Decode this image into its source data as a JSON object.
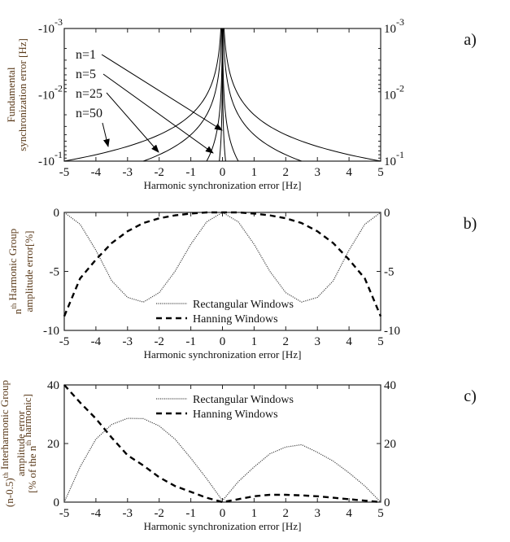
{
  "chart_data": [
    {
      "id": "a",
      "type": "line",
      "panel_label": "a)",
      "xlabel": "Harmonic synchronization  error [Hz]",
      "ylabel_lines": [
        [
          {
            "t": "Fundamental"
          }
        ],
        [
          {
            "t": "synchronization error [Hz]"
          }
        ]
      ],
      "xlim": [
        -5,
        5
      ],
      "xticks": [
        "-5",
        "-4",
        "-3",
        "-2",
        "-1",
        "0",
        "1",
        "2",
        "3",
        "4",
        "5"
      ],
      "yscale": "log",
      "ylim": [
        0.001,
        0.1
      ],
      "yticks_left": [
        {
          "v": 0.001,
          "base": "-10",
          "exp": "-3"
        },
        {
          "v": 0.01,
          "base": "-10",
          "exp": "-2"
        },
        {
          "v": 0.1,
          "base": "-10",
          "exp": "-1"
        }
      ],
      "yticks_right": [
        {
          "v": 0.001,
          "base": "10",
          "exp": "-3"
        },
        {
          "v": 0.01,
          "base": "10",
          "exp": "-2"
        },
        {
          "v": 0.1,
          "base": "10",
          "exp": "-1"
        }
      ],
      "series": [
        {
          "name": "n=1",
          "n": 1
        },
        {
          "name": "n=5",
          "n": 5
        },
        {
          "name": "n=25",
          "n": 25
        },
        {
          "name": "n=50",
          "n": 50
        }
      ],
      "relation": "fundamental error = |harmonic error| / n",
      "color": "#000000"
    },
    {
      "id": "b",
      "type": "line",
      "panel_label": "b)",
      "xlabel": "Harmonic synchronization  error [Hz]",
      "ylabel_lines": [
        [
          {
            "t": "n"
          },
          {
            "t": "th",
            "sup": true
          },
          {
            "t": " Harmonic Group"
          }
        ],
        [
          {
            "t": "amplitude error[%]"
          }
        ]
      ],
      "xlim": [
        -5,
        5
      ],
      "xticks": [
        "-5",
        "-4",
        "-3",
        "-2",
        "-1",
        "0",
        "1",
        "2",
        "3",
        "4",
        "5"
      ],
      "ylim": [
        -10,
        0
      ],
      "yticks": [
        "0",
        "-5",
        "-10"
      ],
      "ytick_values": [
        0,
        -5,
        -10
      ],
      "legend": "center-bottom",
      "x": [
        -5,
        -4.5,
        -4,
        -3.5,
        -3,
        -2.5,
        -2,
        -1.5,
        -1,
        -0.5,
        0,
        0.5,
        1,
        1.5,
        2,
        2.5,
        3,
        3.5,
        4,
        4.5,
        5
      ],
      "series": [
        {
          "name": "Rectangular Windows",
          "style": "dotted",
          "values": [
            0,
            -1.0,
            -3.2,
            -5.8,
            -7.2,
            -7.6,
            -6.8,
            -5.0,
            -2.7,
            -0.8,
            0,
            -0.8,
            -2.7,
            -5.0,
            -6.8,
            -7.6,
            -7.2,
            -5.8,
            -3.2,
            -1.0,
            0
          ]
        },
        {
          "name": "Hanning Windows",
          "style": "dashed",
          "values": [
            -8.8,
            -5.6,
            -4.0,
            -2.6,
            -1.6,
            -0.9,
            -0.5,
            -0.25,
            -0.1,
            0,
            0,
            0,
            -0.1,
            -0.25,
            -0.5,
            -0.9,
            -1.6,
            -2.6,
            -4.0,
            -5.6,
            -8.8
          ]
        }
      ]
    },
    {
      "id": "c",
      "type": "line",
      "panel_label": "c)",
      "xlabel": "Harmonic synchronization  error [Hz]",
      "ylabel_lines": [
        [
          {
            "t": "(n-0.5)"
          },
          {
            "t": "th",
            "sup": true
          },
          {
            "t": " Interharmonic Group"
          }
        ],
        [
          {
            "t": "amplitude error"
          }
        ],
        [
          {
            "t": "[% of the n"
          },
          {
            "t": "th",
            "sup": true
          },
          {
            "t": " harmonic]"
          }
        ]
      ],
      "xlim": [
        -5,
        5
      ],
      "xticks": [
        "-5",
        "-4",
        "-3",
        "-2",
        "-1",
        "0",
        "1",
        "2",
        "3",
        "4",
        "5"
      ],
      "ylim": [
        0,
        40
      ],
      "yticks": [
        "0",
        "20",
        "40"
      ],
      "ytick_values": [
        0,
        20,
        40
      ],
      "legend": "top-center",
      "x": [
        -5,
        -4.5,
        -4,
        -3.5,
        -3,
        -2.5,
        -2,
        -1.5,
        -1,
        -0.5,
        0,
        0.5,
        1,
        1.5,
        2,
        2.5,
        3,
        3.5,
        4,
        4.5,
        5
      ],
      "series": [
        {
          "name": "Rectangular Windows",
          "style": "dotted",
          "values": [
            0,
            12,
            21.5,
            26.5,
            28.6,
            28.5,
            26,
            21.5,
            15,
            8,
            0.5,
            7,
            12,
            16.5,
            18.8,
            19.6,
            17,
            14,
            10,
            5.5,
            0
          ]
        },
        {
          "name": "Hanning Windows",
          "style": "dashed",
          "values": [
            40,
            34,
            28.5,
            22,
            16,
            12.5,
            8.5,
            5.5,
            3.5,
            1.5,
            0,
            1,
            2,
            2.5,
            2.5,
            2.3,
            2,
            1.5,
            1,
            0.5,
            0
          ]
        }
      ]
    }
  ]
}
